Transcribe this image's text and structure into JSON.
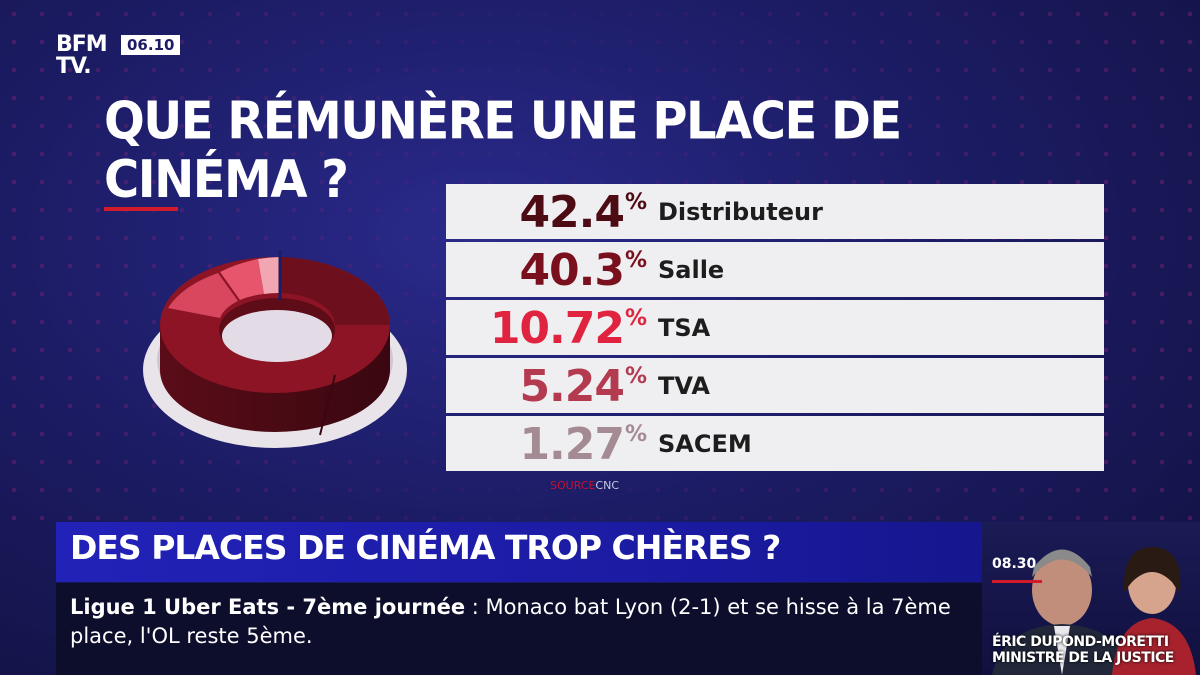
{
  "channel": {
    "logo_line1": "BFM",
    "logo_line2": "TV.",
    "time": "06.10"
  },
  "chart_data": {
    "type": "table",
    "title": "QUE RÉMUNÈRE UNE PLACE DE CINÉMA ?",
    "unit": "%",
    "rows": [
      {
        "label": "Distributeur",
        "value": 42.4,
        "display": "42.4",
        "color": "#4d0b14"
      },
      {
        "label": "Salle",
        "value": 40.3,
        "display": "40.3",
        "color": "#7a0f1d"
      },
      {
        "label": "TSA",
        "value": 10.72,
        "display": "10.72",
        "color": "#e0243f"
      },
      {
        "label": "TVA",
        "value": 5.24,
        "display": "5.24",
        "color": "#b33a4f"
      },
      {
        "label": "SACEM",
        "value": 1.27,
        "display": "1.27",
        "color": "#a48a92"
      }
    ],
    "source_label": "SOURCE",
    "source_name": "CNC"
  },
  "banner": {
    "headline": "DES PLACES DE CINÉMA TROP CHÈRES ?"
  },
  "ticker": {
    "heading": "Ligue 1 Uber Eats - 7ème journée",
    "separator": " : ",
    "text": "Monaco bat Lyon (2-1) et se hisse à la 7ème place, l'OL reste 5ème."
  },
  "live_panel": {
    "time": "08.30",
    "name_line1": "ÉRIC DUPOND-MORETTI",
    "name_line2": "MINISTRE DE LA JUSTICE"
  },
  "colors": {
    "accent_red": "#d11a2a",
    "banner_blue": "#2222b8",
    "background": "#1c1c66"
  }
}
